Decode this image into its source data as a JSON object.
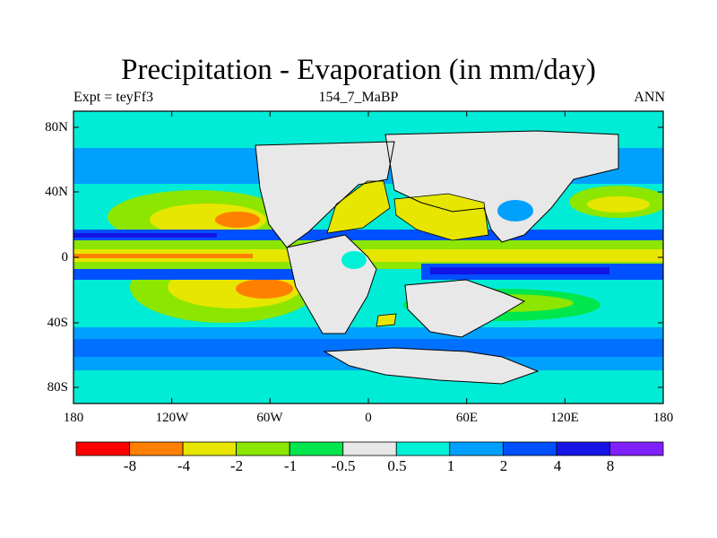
{
  "header": {
    "title": "Precipitation - Evaporation (in mm/day)",
    "left_label": "Expt = teyFf3",
    "center_label": "154_7_MaBP",
    "right_label": "ANN"
  },
  "map": {
    "lat_labels": [
      "80N",
      "40N",
      "0",
      "40S",
      "80S"
    ],
    "lon_labels": [
      "180",
      "120W",
      "60W",
      "0",
      "60E",
      "120E",
      "180"
    ],
    "ocean_color": "#00ECD6",
    "land_color": "#E8E8E8"
  },
  "colorbar": {
    "colors": [
      "#FF0000",
      "#FF8000",
      "#E6E600",
      "#8CE600",
      "#00E64D",
      "#E8E8E8",
      "#00F0D8",
      "#00A0FF",
      "#0050FF",
      "#1414E6",
      "#8020FF"
    ],
    "labels": [
      "-8",
      "-4",
      "-2",
      "-1",
      "-0.5",
      "0.5",
      "1",
      "2",
      "4",
      "8"
    ]
  }
}
